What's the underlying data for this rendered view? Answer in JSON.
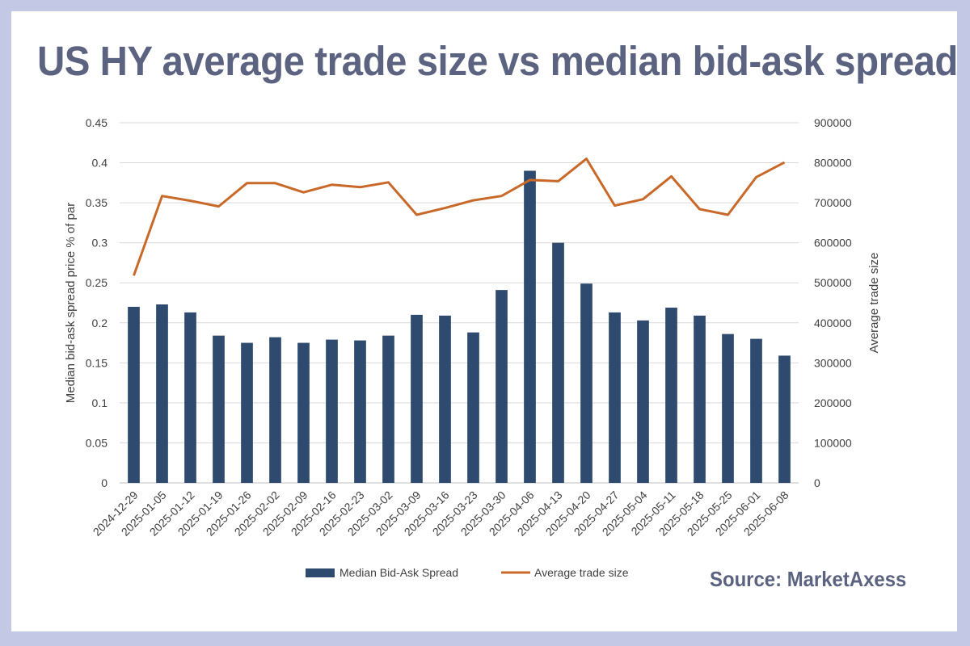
{
  "colors": {
    "frame": "#c3c8e4",
    "title": "#5c6380",
    "bar": "#2e4a6e",
    "line": "#c8692a",
    "grid": "#d9d9d9",
    "axis_text": "#404040"
  },
  "header": {
    "title": "US HY average trade size vs median bid-ask spread"
  },
  "footer": {
    "source": "Source: MarketAxess"
  },
  "chart_data": {
    "type": "bar",
    "categories": [
      "2024-12-29",
      "2025-01-05",
      "2025-01-12",
      "2025-01-19",
      "2025-01-26",
      "2025-02-02",
      "2025-02-09",
      "2025-02-16",
      "2025-02-23",
      "2025-03-02",
      "2025-03-09",
      "2025-03-16",
      "2025-03-23",
      "2025-03-30",
      "2025-04-06",
      "2025-04-13",
      "2025-04-20",
      "2025-04-27",
      "2025-05-04",
      "2025-05-11",
      "2025-05-18",
      "2025-05-25",
      "2025-06-01",
      "2025-06-08"
    ],
    "series": [
      {
        "name": "Median Bid-Ask Spread",
        "type": "bar",
        "axis": "left",
        "values": [
          0.22,
          0.223,
          0.213,
          0.184,
          0.175,
          0.182,
          0.175,
          0.179,
          0.178,
          0.184,
          0.21,
          0.209,
          0.188,
          0.241,
          0.39,
          0.3,
          0.249,
          0.213,
          0.203,
          0.219,
          0.209,
          0.186,
          0.18,
          0.159
        ]
      },
      {
        "name": "Average trade size",
        "type": "line",
        "axis": "right",
        "values": [
          518000,
          717000,
          705000,
          691000,
          749000,
          749000,
          726000,
          745000,
          739000,
          751000,
          670000,
          687000,
          706000,
          717000,
          757000,
          754000,
          810000,
          693000,
          709000,
          766000,
          684000,
          670000,
          764000,
          801000
        ]
      }
    ],
    "y_left": {
      "label": "Median bid-ask spread price % of par",
      "min": 0,
      "max": 0.45,
      "ticks": [
        "0",
        "0.05",
        "0.1",
        "0.15",
        "0.2",
        "0.25",
        "0.3",
        "0.35",
        "0.4",
        "0.45"
      ]
    },
    "y_right": {
      "label": "Average trade size",
      "min": 0,
      "max": 900000,
      "ticks": [
        "0",
        "100000",
        "200000",
        "300000",
        "400000",
        "500000",
        "600000",
        "700000",
        "800000",
        "900000"
      ]
    },
    "grid": true,
    "legend": "bottom"
  }
}
